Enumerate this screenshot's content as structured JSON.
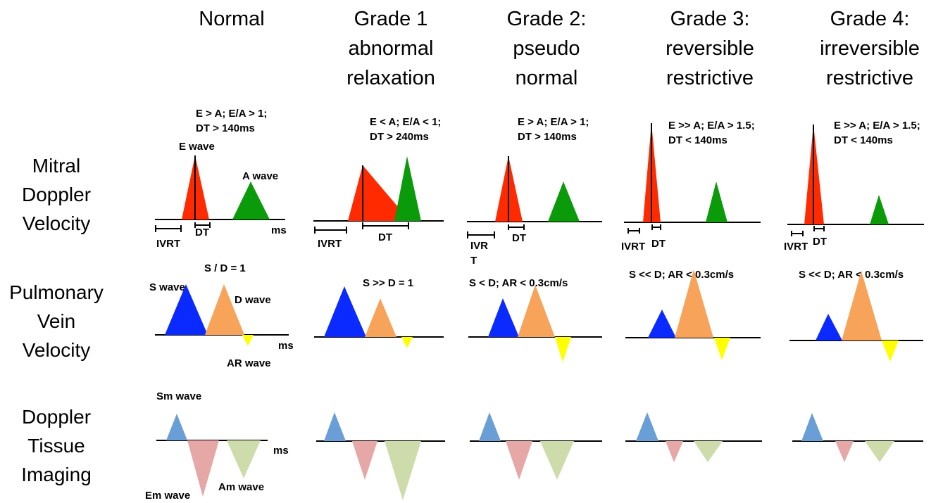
{
  "columns": [
    {
      "title": "Normal",
      "mitral": "E > A; E/A > 1;\nDT > 140ms",
      "pv": "S / D = 1"
    },
    {
      "title": "Grade 1\nabnormal\nrelaxation",
      "mitral": "E < A; E/A < 1;\nDT > 240ms",
      "pv": "S >> D = 1"
    },
    {
      "title": "Grade 2:\npseudo\nnormal",
      "mitral": "E > A; E/A > 1;\nDT > 140ms",
      "pv": "S < D; AR < 0.3cm/s"
    },
    {
      "title": "Grade 3:\nreversible\nrestrictive",
      "mitral": "E >> A; E/A > 1.5;\nDT < 140ms",
      "pv": "S << D; AR < 0.3cm/s"
    },
    {
      "title": "Grade 4:\nirreversible\nrestrictive",
      "mitral": "E >> A; E/A > 1.5;\nDT < 140ms",
      "pv": "S << D; AR < 0.3cm/s"
    }
  ],
  "rows": [
    {
      "label": "Mitral\nDoppler\nVelocity"
    },
    {
      "label": "Pulmonary\nVein\nVelocity"
    },
    {
      "label": "Doppler\nTissue\nImaging"
    }
  ],
  "wave_labels": {
    "e_wave": "E wave",
    "a_wave": "A wave",
    "s_wave": "S wave",
    "d_wave": "D wave",
    "ar_wave": "AR wave",
    "sm_wave": "Sm wave",
    "em_wave": "Em wave",
    "am_wave": "Am wave",
    "ms": "ms",
    "ivrt": "IVRT",
    "dt": "DT",
    "ivrt_split": "IVR\nT"
  },
  "colors": {
    "e": "#ff2a00",
    "a": "#0a9a0a",
    "s": "#0a2aff",
    "d": "#f8a35a",
    "ar": "#ffff00",
    "sm": "#6a9ed6",
    "em": "#e6a7a7",
    "am": "#cddcaa"
  }
}
